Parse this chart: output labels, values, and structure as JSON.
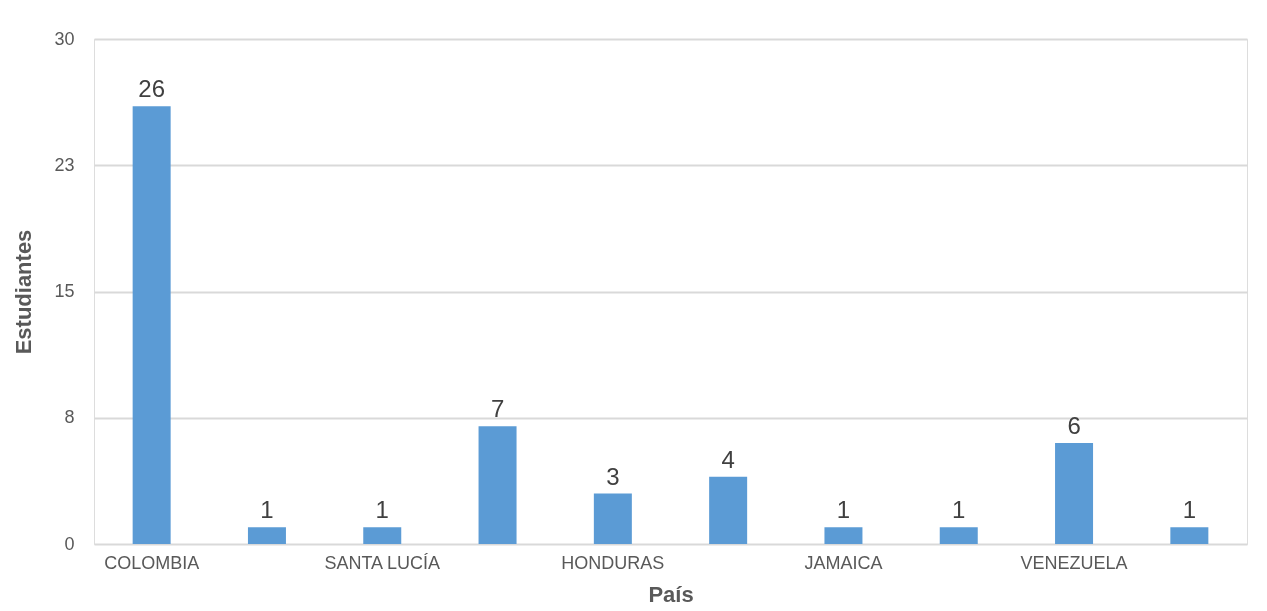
{
  "chart_data": {
    "type": "bar",
    "xlabel": "País",
    "ylabel": "Estudiantes",
    "categories": [
      "COLOMBIA",
      null,
      "SANTA LUCÍA",
      null,
      "HONDURAS",
      null,
      "JAMAICA",
      null,
      "VENEZUELA",
      null
    ],
    "values": [
      26,
      1,
      1,
      7,
      3,
      4,
      1,
      1,
      6,
      1
    ],
    "color": "#5b9bd5",
    "ylim": [
      0,
      30
    ],
    "yticks": [
      0,
      {
        "value": 7.5,
        "label": "8"
      },
      15,
      {
        "value": 22.5,
        "label": "23"
      },
      30
    ],
    "grid": "y",
    "data_labels": true
  }
}
